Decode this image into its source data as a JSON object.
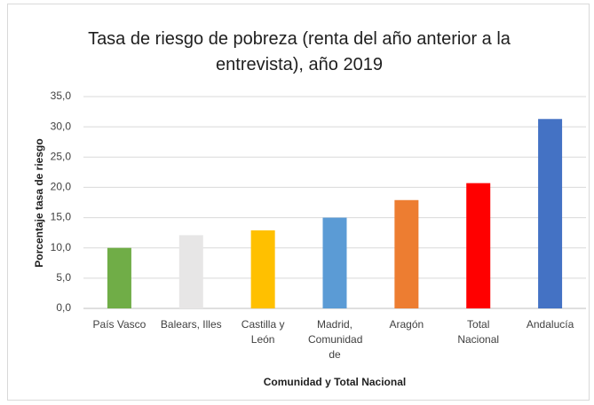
{
  "chart_data": {
    "type": "bar",
    "title": "Tasa de riesgo de pobreza (renta del año anterior a la entrevista), año 2019",
    "x_label": "Comunidad y Total Nacional",
    "y_label": "Porcentaje tasa de riesgo",
    "categories": [
      "País Vasco",
      "Balears, Illes",
      "Castilla y León",
      "Madrid, Comunidad de",
      "Aragón",
      "Total Nacional",
      "Andalucía"
    ],
    "values": [
      10.0,
      12.1,
      12.9,
      15.0,
      17.9,
      20.7,
      31.3
    ],
    "colors": [
      "#70ad47",
      "#e7e6e6",
      "#ffc000",
      "#5b9bd5",
      "#ed7d31",
      "#ff0000",
      "#4472c4"
    ],
    "ylim": [
      0,
      35
    ],
    "yticks": [
      {
        "value": 0,
        "label": "0,0"
      },
      {
        "value": 5,
        "label": "5,0"
      },
      {
        "value": 10,
        "label": "10,0"
      },
      {
        "value": 15,
        "label": "15,0"
      },
      {
        "value": 20,
        "label": "20,0"
      },
      {
        "value": 25,
        "label": "25,0"
      },
      {
        "value": 30,
        "label": "30,0"
      },
      {
        "value": 35,
        "label": "35,0"
      }
    ],
    "grid": true
  }
}
